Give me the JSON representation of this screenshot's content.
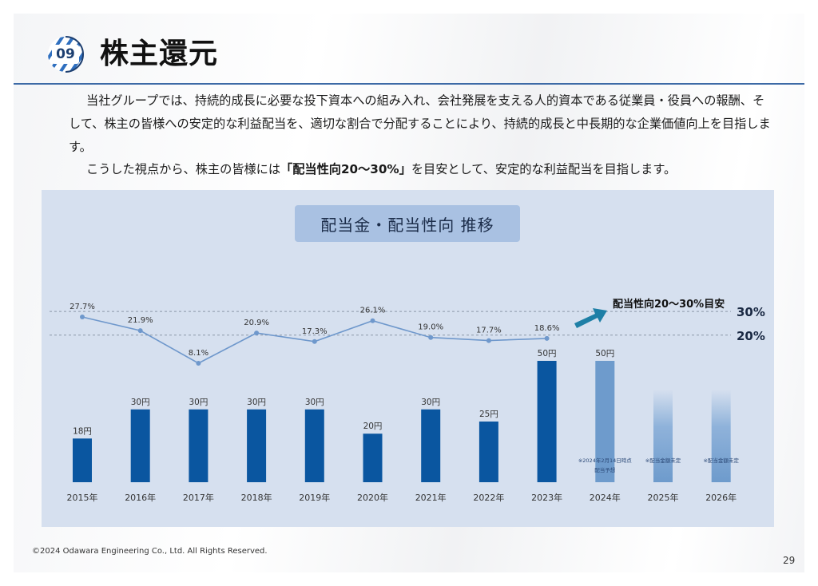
{
  "header": {
    "section_number": "09",
    "title": "株主還元"
  },
  "body": {
    "paragraph1": "当社グループでは、持続的成長に必要な投下資本への組み入れ、会社発展を支える人的資本である従業員・役員への報酬、そして、株主の皆様への安定的な利益配当を、適切な割合で分配することにより、持続的成長と中長期的な企業価値向上を目指します。",
    "paragraph2_before": "こうした視点から、株主の皆様には",
    "paragraph2_emphasis": "「配当性向20〜30%」",
    "paragraph2_after": "を目安として、安定的な利益配当を目指します。"
  },
  "chart_data": {
    "type": "bar",
    "title": "配当金・配当性向 推移",
    "categories": [
      "2015年",
      "2016年",
      "2017年",
      "2018年",
      "2019年",
      "2020年",
      "2021年",
      "2022年",
      "2023年",
      "2024年",
      "2025年",
      "2026年"
    ],
    "series": [
      {
        "values": [
          18,
          30,
          30,
          30,
          30,
          20,
          30,
          25,
          50,
          50,
          null,
          null
        ],
        "labels": [
          "18円",
          "30円",
          "30円",
          "30円",
          "30円",
          "20円",
          "30円",
          "25円",
          "50円",
          "50円",
          "",
          ""
        ]
      },
      {
        "values": [
          27.7,
          21.9,
          8.1,
          20.9,
          17.3,
          26.1,
          19.0,
          17.7,
          18.6,
          null,
          null,
          null
        ],
        "labels": [
          "27.7%",
          "21.9%",
          "8.1%",
          "20.9%",
          "17.3%",
          "26.1%",
          "19.0%",
          "17.7%",
          "18.6%",
          "",
          "",
          ""
        ]
      }
    ],
    "bar_notes": [
      "",
      "",
      "",
      "",
      "",
      "",
      "",
      "",
      "",
      "※2024年2月14日時点\n配当予想",
      "※配当金額未定",
      "※配当金額未定"
    ],
    "reference_lines": [
      {
        "label": "30%",
        "value": 30
      },
      {
        "label": "20%",
        "value": 20
      }
    ],
    "target_annotation": "配当性向20〜30%目安",
    "colors": {
      "bar": "#0a56a0",
      "bar_forecast": "#6e9bcc",
      "line": "#6f98cc",
      "background": "#d6e0ef"
    }
  },
  "footer": {
    "copyright": "©2024 Odawara Engineering Co., Ltd. All Rights Reserved.",
    "page_number": "29"
  }
}
